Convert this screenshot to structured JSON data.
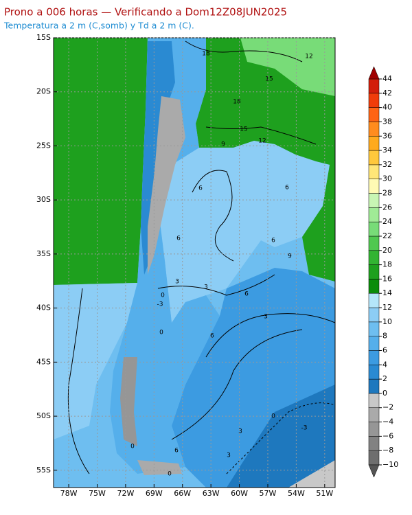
{
  "title": "Prono a 006 horas — Verificando a Dom12Z08JUN2025",
  "subtitle": "Temperatura a 2 m (C,somb) y Td a 2 m (C).",
  "map": {
    "xlim": [
      -79.6,
      -49.9
    ],
    "ylim": [
      -56.6,
      -15
    ],
    "xticks": [
      {
        "value": -78,
        "label": "78W"
      },
      {
        "value": -75,
        "label": "75W"
      },
      {
        "value": -72,
        "label": "72W"
      },
      {
        "value": -69,
        "label": "69W"
      },
      {
        "value": -66,
        "label": "66W"
      },
      {
        "value": -63,
        "label": "63W"
      },
      {
        "value": -60,
        "label": "60W"
      },
      {
        "value": -57,
        "label": "57W"
      },
      {
        "value": -54,
        "label": "54W"
      },
      {
        "value": -51,
        "label": "51W"
      }
    ],
    "yticks": [
      {
        "value": -15,
        "label": "15S"
      },
      {
        "value": -20,
        "label": "20S"
      },
      {
        "value": -25,
        "label": "25S"
      },
      {
        "value": -30,
        "label": "30S"
      },
      {
        "value": -35,
        "label": "35S"
      },
      {
        "value": -40,
        "label": "40S"
      },
      {
        "value": -45,
        "label": "45S"
      },
      {
        "value": -50,
        "label": "50S"
      },
      {
        "value": -55,
        "label": "55S"
      }
    ],
    "grid": true,
    "contour_labels": [
      "18",
      "12",
      "15",
      "18",
      "15",
      "12",
      "9",
      "6",
      "6",
      "6",
      "6",
      "9",
      "3",
      "0",
      "3",
      "-3",
      "6",
      "3",
      "6",
      "0",
      "0",
      "3",
      "-3",
      "6",
      "3",
      "0",
      "0"
    ]
  },
  "colorbar": {
    "lim": [
      -10,
      44
    ],
    "ticks": [
      {
        "value": 44,
        "label": "44"
      },
      {
        "value": 42,
        "label": "42"
      },
      {
        "value": 40,
        "label": "40"
      },
      {
        "value": 38,
        "label": "38"
      },
      {
        "value": 36,
        "label": "36"
      },
      {
        "value": 34,
        "label": "34"
      },
      {
        "value": 32,
        "label": "32"
      },
      {
        "value": 30,
        "label": "30"
      },
      {
        "value": 28,
        "label": "28"
      },
      {
        "value": 26,
        "label": "26"
      },
      {
        "value": 24,
        "label": "24"
      },
      {
        "value": 22,
        "label": "22"
      },
      {
        "value": 20,
        "label": "20"
      },
      {
        "value": 18,
        "label": "18"
      },
      {
        "value": 16,
        "label": "16"
      },
      {
        "value": 14,
        "label": "14"
      },
      {
        "value": 12,
        "label": "12"
      },
      {
        "value": 10,
        "label": "10"
      },
      {
        "value": 8,
        "label": "8"
      },
      {
        "value": 6,
        "label": "6"
      },
      {
        "value": 4,
        "label": "4"
      },
      {
        "value": 2,
        "label": "2"
      },
      {
        "value": 0,
        "label": "0"
      },
      {
        "value": -2,
        "label": "−2"
      },
      {
        "value": -4,
        "label": "−4"
      },
      {
        "value": -6,
        "label": "−6"
      },
      {
        "value": -8,
        "label": "−8"
      },
      {
        "value": -10,
        "label": "−10"
      }
    ],
    "colors": [
      "#6e6e6e",
      "#828282",
      "#969696",
      "#aaaaaa",
      "#c8c8c8",
      "#1e78be",
      "#2a8ad2",
      "#3c9be1",
      "#55afeb",
      "#6ebef0",
      "#8ccdf5",
      "#b4e6fa",
      "#0a8c0a",
      "#1ea01e",
      "#32b432",
      "#50c850",
      "#78dc78",
      "#a0eb96",
      "#c8f5b4",
      "#fffab4",
      "#ffe678",
      "#ffc83c",
      "#ffaa1e",
      "#ff8c1e",
      "#ff6414",
      "#f03c0a",
      "#d21e0a"
    ],
    "over_color": "#a00000",
    "under_color": "#555555"
  }
}
